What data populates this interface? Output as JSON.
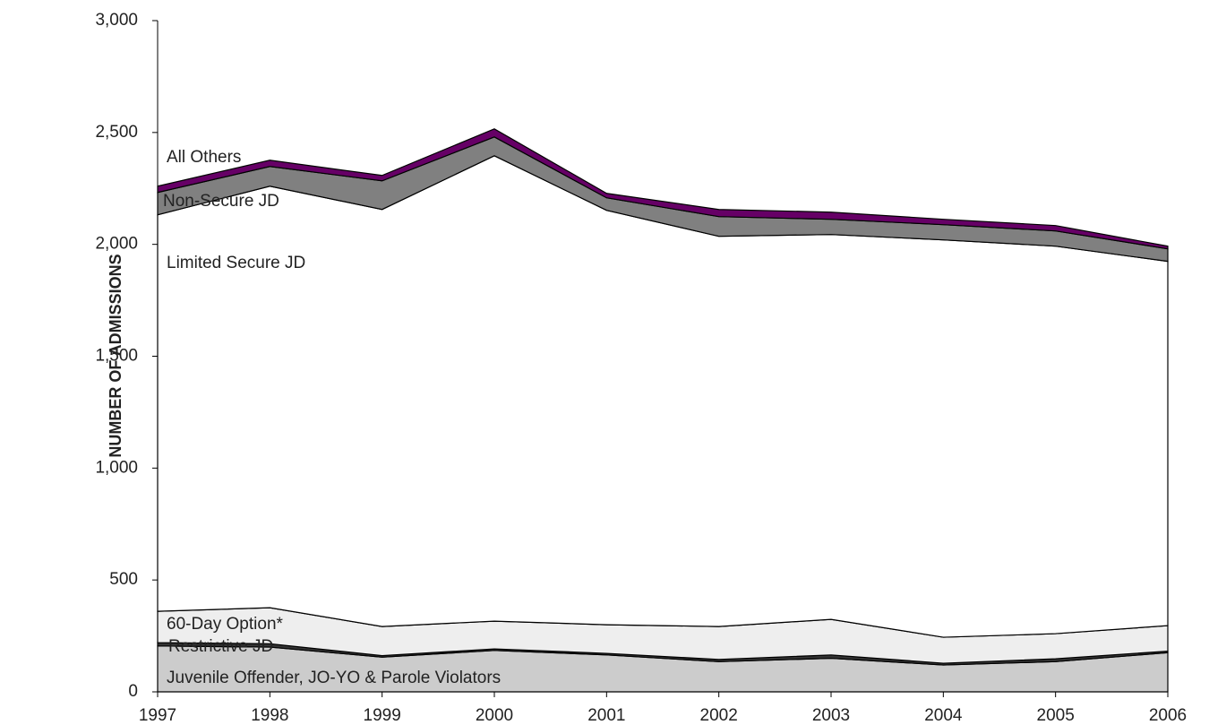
{
  "chart_data": {
    "type": "stacked-area",
    "y_label": "NUMBER OF ADMISSIONS",
    "categories": [
      "1997",
      "1998",
      "1999",
      "2000",
      "2001",
      "2002",
      "2003",
      "2004",
      "2005",
      "2006"
    ],
    "series": [
      {
        "name": "Juvenile Offender, JO-YO & Parole Violators",
        "color": "#cccccc",
        "values": [
          205,
          200,
          155,
          185,
          165,
          135,
          150,
          120,
          135,
          175
        ]
      },
      {
        "name": "Restrictive JD",
        "color": "#333333",
        "values": [
          15,
          15,
          7,
          7,
          7,
          10,
          15,
          8,
          13,
          7
        ]
      },
      {
        "name": "60-Day Option*",
        "color": "#eeeeee",
        "values": [
          140,
          161,
          130,
          124,
          128,
          147,
          159,
          116,
          112,
          114
        ]
      },
      {
        "name": "Limited Secure JD",
        "color": "#ffffff",
        "values": [
          1772,
          1884,
          1864,
          2080,
          1852,
          1744,
          1720,
          1776,
          1732,
          1628
        ]
      },
      {
        "name": "Non-Secure JD",
        "color": "#808080",
        "values": [
          100,
          88,
          128,
          84,
          56,
          88,
          68,
          68,
          68,
          56
        ]
      },
      {
        "name": "All Others",
        "color": "#660066",
        "values": [
          28,
          28,
          24,
          36,
          20,
          32,
          32,
          24,
          24,
          12
        ]
      }
    ],
    "ylim": [
      0,
      3000
    ],
    "yticks": [
      0,
      500,
      {
        "value": 1000,
        "label": "1,000"
      },
      {
        "value": 1500,
        "label": "1,500"
      },
      {
        "value": 2000,
        "label": "2,000"
      },
      {
        "value": 2500,
        "label": "2,500"
      },
      {
        "value": 3000,
        "label": "3,000"
      }
    ]
  }
}
